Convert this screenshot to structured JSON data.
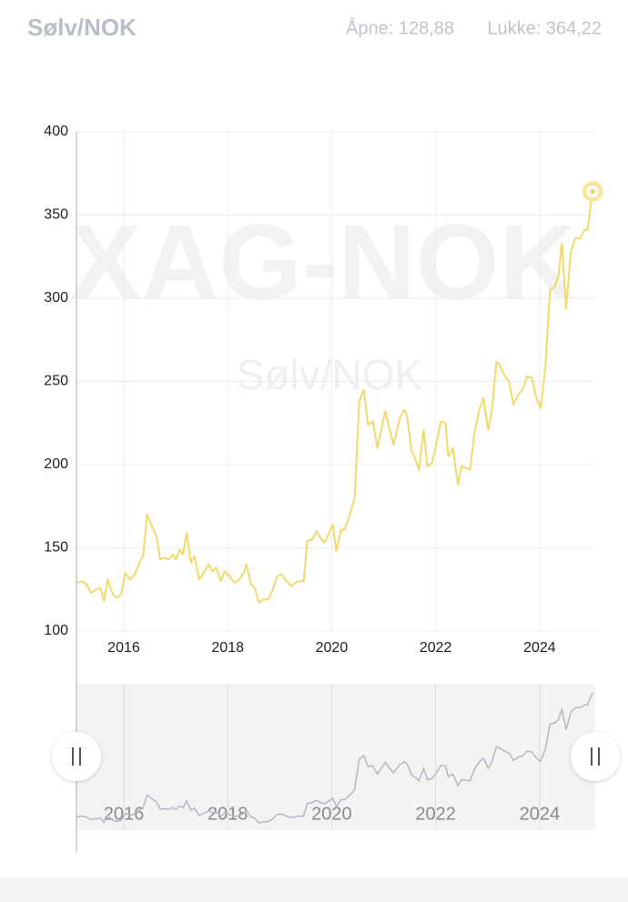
{
  "header": {
    "title": "Sølv/NOK",
    "open": "Åpne: 128,88",
    "close": "Lukke: 364,22"
  },
  "watermark": {
    "symbol": "XAG-NOK",
    "name": "Sølv/NOK"
  },
  "chart_data": {
    "type": "line",
    "color": "#f2d96b",
    "grid": true,
    "xlim": [
      2015.09,
      2025.07
    ],
    "xticks": [
      2016,
      2018,
      2020,
      2022,
      2024
    ],
    "ylim": [
      100,
      400
    ],
    "yticks": [
      100,
      150,
      200,
      250,
      300,
      350,
      400
    ],
    "x": [
      2015.09,
      2015.2,
      2015.28,
      2015.37,
      2015.48,
      2015.55,
      2015.62,
      2015.69,
      2015.79,
      2015.86,
      2015.95,
      2016.03,
      2016.12,
      2016.21,
      2016.3,
      2016.37,
      2016.45,
      2016.54,
      2016.63,
      2016.7,
      2016.79,
      2016.87,
      2016.94,
      2017.0,
      2017.08,
      2017.14,
      2017.21,
      2017.29,
      2017.36,
      2017.45,
      2017.54,
      2017.63,
      2017.71,
      2017.78,
      2017.87,
      2017.94,
      2018.03,
      2018.13,
      2018.22,
      2018.31,
      2018.36,
      2018.45,
      2018.52,
      2018.6,
      2018.69,
      2018.78,
      2018.87,
      2018.95,
      2019.04,
      2019.13,
      2019.22,
      2019.3,
      2019.39,
      2019.46,
      2019.53,
      2019.62,
      2019.71,
      2019.78,
      2019.86,
      2019.95,
      2020.02,
      2020.09,
      2020.18,
      2020.25,
      2020.35,
      2020.44,
      2020.53,
      2020.62,
      2020.7,
      2020.79,
      2020.88,
      2021.03,
      2021.14,
      2021.19,
      2021.31,
      2021.4,
      2021.45,
      2021.54,
      2021.59,
      2021.68,
      2021.77,
      2021.84,
      2021.93,
      2022.01,
      2022.1,
      2022.19,
      2022.24,
      2022.33,
      2022.43,
      2022.5,
      2022.66,
      2022.75,
      2022.84,
      2022.92,
      2023.01,
      2023.08,
      2023.17,
      2023.24,
      2023.33,
      2023.41,
      2023.5,
      2023.59,
      2023.67,
      2023.76,
      2023.85,
      2023.94,
      2024.02,
      2024.11,
      2024.2,
      2024.29,
      2024.36,
      2024.43,
      2024.51,
      2024.6,
      2024.69,
      2024.78,
      2024.86,
      2024.92,
      2025.02
    ],
    "values": [
      128.88,
      130,
      128,
      123,
      125,
      126,
      118,
      131,
      122,
      120,
      122,
      135,
      131,
      134,
      141,
      145,
      170,
      163,
      157,
      143,
      144,
      143,
      146,
      143,
      149,
      146,
      159,
      141,
      145,
      131,
      135,
      140,
      136,
      138,
      130,
      136,
      133,
      129,
      131,
      135,
      140,
      128,
      126,
      117,
      119,
      119,
      125,
      133,
      134,
      130,
      127,
      129,
      130,
      130,
      154,
      155,
      160,
      156,
      153,
      159,
      164,
      148,
      161,
      161,
      170,
      180,
      238,
      245,
      224,
      226,
      210,
      232,
      218,
      212,
      228,
      233,
      229,
      208,
      205,
      197,
      221,
      199,
      201,
      212,
      226,
      225,
      205,
      210,
      188,
      199,
      197,
      220,
      233,
      240,
      221,
      232,
      262,
      259,
      253,
      250,
      236,
      242,
      245,
      253,
      252,
      240,
      234,
      258,
      305,
      307,
      313,
      333,
      294,
      328,
      336,
      336,
      341,
      341,
      364.22
    ]
  }
}
